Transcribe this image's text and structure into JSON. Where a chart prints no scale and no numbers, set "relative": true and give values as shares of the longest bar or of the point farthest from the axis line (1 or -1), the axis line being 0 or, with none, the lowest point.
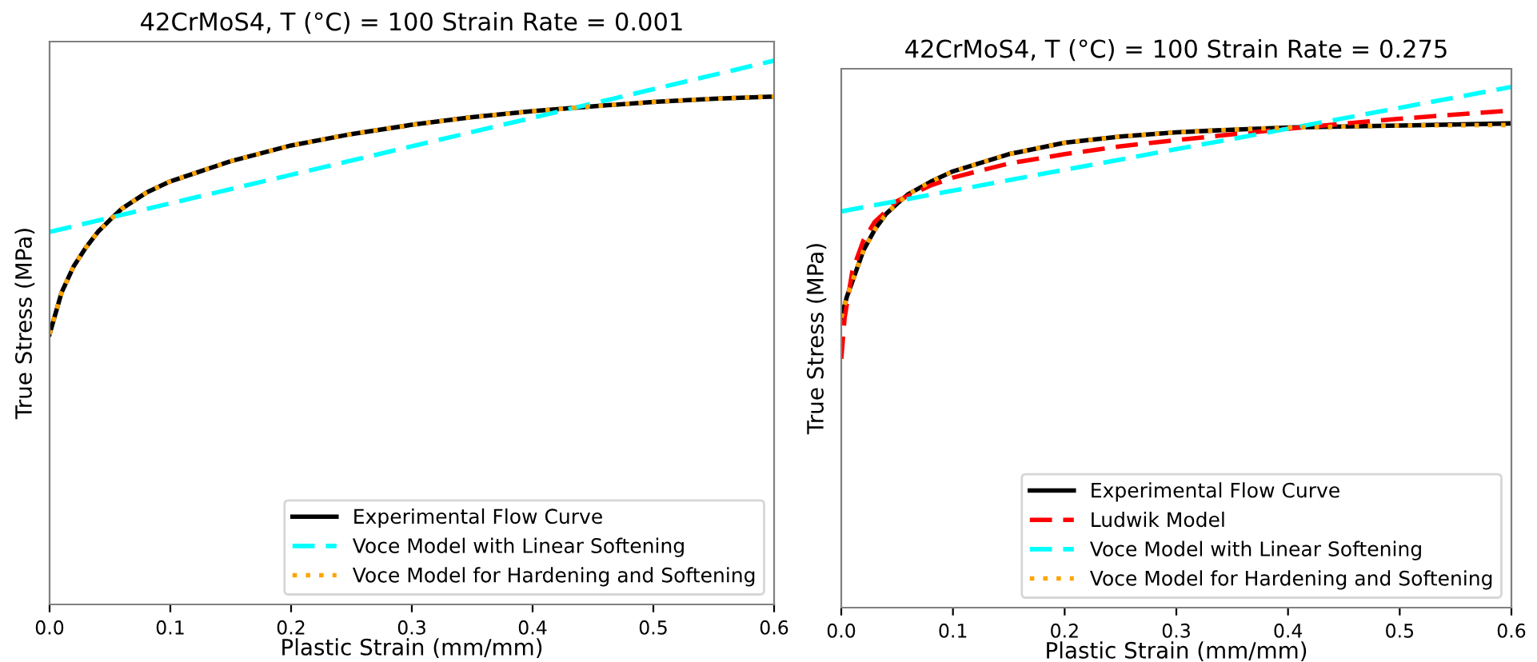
{
  "chart_data": [
    {
      "type": "line",
      "title": "42CrMoS4, T (°C) = 100 Strain Rate = 0.001",
      "xlabel": "Plastic Strain (mm/mm)",
      "ylabel": "True Stress (MPa)",
      "relative": true,
      "xlim": [
        0,
        0.6
      ],
      "xticks": [
        {
          "value": 0,
          "label": "0.0"
        },
        {
          "value": 0.1,
          "label": "0.1"
        },
        {
          "value": 0.2,
          "label": "0.2"
        },
        {
          "value": 0.3,
          "label": "0.3"
        },
        {
          "value": 0.4,
          "label": "0.4"
        },
        {
          "value": 0.5,
          "label": "0.5"
        },
        {
          "value": 0.6,
          "label": "0.6"
        }
      ],
      "legend": "bottom right",
      "grid": false,
      "series": [
        {
          "name": "Experimental Flow Curve",
          "color": "#000000",
          "line_style": "solid",
          "x": [
            0,
            0.01,
            0.02,
            0.03,
            0.04,
            0.05,
            0.06,
            0.08,
            0.1,
            0.15,
            0.2,
            0.25,
            0.3,
            0.35,
            0.4,
            0.45,
            0.5,
            0.55,
            0.6
          ],
          "values": [
            0.497,
            0.574,
            0.622,
            0.656,
            0.685,
            0.707,
            0.728,
            0.757,
            0.778,
            0.815,
            0.844,
            0.865,
            0.882,
            0.896,
            0.907,
            0.916,
            0.924,
            0.93,
            0.934
          ]
        },
        {
          "name": "Voce Model with Linear Softening",
          "color": "#00ffff",
          "line_style": "dashed",
          "x": [
            0,
            0.2,
            0.4,
            0.6
          ],
          "values": [
            0.685,
            0.79,
            0.895,
            1.0
          ]
        },
        {
          "name": "Voce Model for Hardening and Softening",
          "color": "#ffa500",
          "line_style": "dotted",
          "x": [
            0,
            0.01,
            0.02,
            0.03,
            0.04,
            0.05,
            0.06,
            0.08,
            0.1,
            0.15,
            0.2,
            0.25,
            0.3,
            0.35,
            0.4,
            0.45,
            0.5,
            0.55,
            0.6
          ],
          "values": [
            0.497,
            0.574,
            0.622,
            0.656,
            0.685,
            0.707,
            0.728,
            0.757,
            0.778,
            0.815,
            0.844,
            0.865,
            0.882,
            0.896,
            0.907,
            0.916,
            0.924,
            0.93,
            0.934
          ]
        }
      ]
    },
    {
      "type": "line",
      "title": "42CrMoS4, T (°C) = 100 Strain Rate = 0.275",
      "xlabel": "Plastic Strain (mm/mm)",
      "ylabel": "True Stress (MPa)",
      "relative": true,
      "xlim": [
        0,
        0.6
      ],
      "xticks": [
        {
          "value": 0,
          "label": "0.0"
        },
        {
          "value": 0.1,
          "label": "0.1"
        },
        {
          "value": 0.2,
          "label": "0.2"
        },
        {
          "value": 0.3,
          "label": "0.3"
        },
        {
          "value": 0.4,
          "label": "0.4"
        },
        {
          "value": 0.5,
          "label": "0.5"
        },
        {
          "value": 0.6,
          "label": "0.6"
        }
      ],
      "legend": "bottom right",
      "grid": false,
      "series": [
        {
          "name": "Experimental Flow Curve",
          "color": "#000000",
          "line_style": "solid",
          "x": [
            0,
            0.005,
            0.01,
            0.02,
            0.03,
            0.04,
            0.05,
            0.06,
            0.08,
            0.1,
            0.15,
            0.2,
            0.25,
            0.3,
            0.35,
            0.4,
            0.5,
            0.6
          ],
          "values": [
            0.557,
            0.597,
            0.627,
            0.687,
            0.726,
            0.756,
            0.776,
            0.794,
            0.818,
            0.838,
            0.871,
            0.893,
            0.905,
            0.913,
            0.918,
            0.922,
            0.926,
            0.93
          ]
        },
        {
          "name": "Ludwik Model",
          "color": "#ff0000",
          "line_style": "dashed",
          "x": [
            0,
            0.003,
            0.01,
            0.02,
            0.03,
            0.05,
            0.08,
            0.1,
            0.15,
            0.2,
            0.25,
            0.3,
            0.35,
            0.4,
            0.5,
            0.6
          ],
          "values": [
            0.478,
            0.557,
            0.647,
            0.706,
            0.741,
            0.781,
            0.811,
            0.826,
            0.853,
            0.871,
            0.886,
            0.898,
            0.909,
            0.92,
            0.939,
            0.955
          ]
        },
        {
          "name": "Voce Model with Linear Softening",
          "color": "#00ffff",
          "line_style": "dashed",
          "x": [
            0,
            0.2,
            0.4,
            0.6
          ],
          "values": [
            0.761,
            0.841,
            0.92,
            1.0
          ]
        },
        {
          "name": "Voce Model for Hardening and Softening",
          "color": "#ffa500",
          "line_style": "dotted",
          "x": [
            0,
            0.005,
            0.01,
            0.02,
            0.03,
            0.04,
            0.05,
            0.06,
            0.08,
            0.1,
            0.15,
            0.2,
            0.25,
            0.3,
            0.35,
            0.4,
            0.5,
            0.6
          ],
          "values": [
            0.557,
            0.597,
            0.627,
            0.687,
            0.726,
            0.756,
            0.776,
            0.794,
            0.818,
            0.838,
            0.871,
            0.893,
            0.905,
            0.913,
            0.918,
            0.922,
            0.926,
            0.927
          ]
        }
      ]
    }
  ]
}
